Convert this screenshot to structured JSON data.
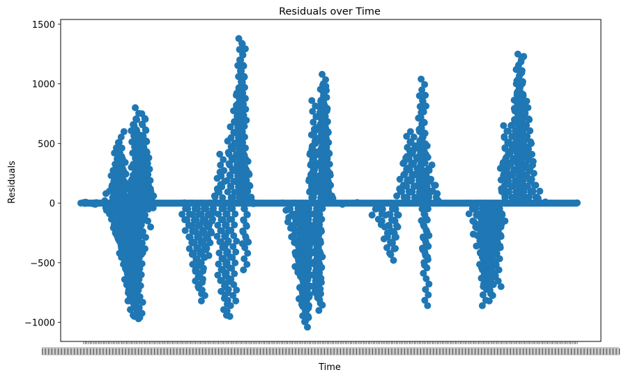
{
  "chart_data": {
    "type": "scatter",
    "title": "Residuals over Time",
    "xlabel": "Time",
    "ylabel": "Residuals",
    "ylim": [
      -1160,
      1540
    ],
    "yticks": [
      1500,
      1000,
      500,
      0,
      -500,
      -1000
    ],
    "ytick_labels": [
      "1500",
      "1000",
      "500",
      "0",
      "−500",
      "−1000"
    ],
    "grid": false,
    "marker_color": "#1f77b4",
    "x_tick_note": "dense overlapping date tick labels, unreadable",
    "series": [
      {
        "values": [
          [
            0.0,
            5
          ],
          [
            0.005,
            -3
          ],
          [
            0.01,
            8
          ],
          [
            0.015,
            -6
          ],
          [
            0.02,
            2
          ],
          [
            0.025,
            -10
          ],
          [
            0.03,
            4
          ],
          [
            0.035,
            -2
          ],
          [
            0.04,
            20
          ],
          [
            0.045,
            -40
          ],
          [
            0.048,
            80
          ],
          [
            0.052,
            -60
          ],
          [
            0.055,
            150
          ],
          [
            0.058,
            -90
          ],
          [
            0.06,
            230
          ],
          [
            0.062,
            -180
          ],
          [
            0.064,
            320
          ],
          [
            0.066,
            -260
          ],
          [
            0.068,
            420
          ],
          [
            0.07,
            -350
          ],
          [
            0.072,
            510
          ],
          [
            0.074,
            -420
          ],
          [
            0.076,
            600
          ],
          [
            0.078,
            -500
          ],
          [
            0.08,
            390
          ],
          [
            0.082,
            -560
          ],
          [
            0.084,
            250
          ],
          [
            0.086,
            -640
          ],
          [
            0.088,
            170
          ],
          [
            0.09,
            -730
          ],
          [
            0.092,
            80
          ],
          [
            0.094,
            -820
          ],
          [
            0.096,
            -940
          ],
          [
            0.098,
            300
          ],
          [
            0.1,
            -880
          ],
          [
            0.102,
            700
          ],
          [
            0.104,
            -950
          ],
          [
            0.106,
            800
          ],
          [
            0.108,
            -960
          ],
          [
            0.11,
            620
          ],
          [
            0.112,
            450
          ],
          [
            0.114,
            -970
          ],
          [
            0.116,
            560
          ],
          [
            0.118,
            260
          ],
          [
            0.12,
            -430
          ],
          [
            0.122,
            750
          ],
          [
            0.124,
            710
          ],
          [
            0.126,
            480
          ],
          [
            0.128,
            160
          ],
          [
            0.13,
            -200
          ],
          [
            0.132,
            380
          ],
          [
            0.134,
            120
          ],
          [
            0.136,
            60
          ],
          [
            0.138,
            -40
          ],
          [
            0.14,
            10
          ],
          [
            0.145,
            -5
          ],
          [
            0.15,
            0
          ],
          [
            0.2,
            3
          ],
          [
            0.205,
            -140
          ],
          [
            0.21,
            -230
          ],
          [
            0.215,
            -330
          ],
          [
            0.22,
            -430
          ],
          [
            0.225,
            -560
          ],
          [
            0.228,
            -620
          ],
          [
            0.232,
            -700
          ],
          [
            0.236,
            -760
          ],
          [
            0.24,
            -820
          ],
          [
            0.244,
            -500
          ],
          [
            0.248,
            -440
          ],
          [
            0.252,
            -380
          ],
          [
            0.256,
            -300
          ],
          [
            0.26,
            -180
          ],
          [
            0.264,
            -80
          ],
          [
            0.268,
            120
          ],
          [
            0.272,
            260
          ],
          [
            0.276,
            -650
          ],
          [
            0.28,
            410
          ],
          [
            0.284,
            -740
          ],
          [
            0.288,
            -940
          ],
          [
            0.292,
            -950
          ],
          [
            0.296,
            520
          ],
          [
            0.3,
            640
          ],
          [
            0.304,
            -820
          ],
          [
            0.308,
            820
          ],
          [
            0.312,
            950
          ],
          [
            0.316,
            1060
          ],
          [
            0.318,
            1200
          ],
          [
            0.32,
            1380
          ],
          [
            0.322,
            1340
          ],
          [
            0.324,
            880
          ],
          [
            0.326,
            -340
          ],
          [
            0.328,
            -560
          ],
          [
            0.33,
            400
          ],
          [
            0.334,
            240
          ],
          [
            0.338,
            100
          ],
          [
            0.342,
            20
          ],
          [
            0.348,
            -5
          ],
          [
            0.36,
            0
          ],
          [
            0.4,
            2
          ],
          [
            0.41,
            -120
          ],
          [
            0.418,
            -210
          ],
          [
            0.424,
            -330
          ],
          [
            0.43,
            -460
          ],
          [
            0.434,
            -580
          ],
          [
            0.438,
            -600
          ],
          [
            0.44,
            -800
          ],
          [
            0.442,
            -850
          ],
          [
            0.444,
            -780
          ],
          [
            0.446,
            -900
          ],
          [
            0.448,
            -990
          ],
          [
            0.45,
            -960
          ],
          [
            0.452,
            -1040
          ],
          [
            0.454,
            -880
          ],
          [
            0.456,
            -600
          ],
          [
            0.458,
            -420
          ],
          [
            0.46,
            250
          ],
          [
            0.462,
            420
          ],
          [
            0.464,
            500
          ],
          [
            0.466,
            620
          ],
          [
            0.468,
            860
          ],
          [
            0.47,
            -790
          ],
          [
            0.472,
            -720
          ],
          [
            0.474,
            -840
          ],
          [
            0.476,
            -760
          ],
          [
            0.478,
            -900
          ],
          [
            0.48,
            760
          ],
          [
            0.482,
            900
          ],
          [
            0.484,
            1000
          ],
          [
            0.486,
            1080
          ],
          [
            0.488,
            980
          ],
          [
            0.49,
            820
          ],
          [
            0.492,
            600
          ],
          [
            0.494,
            420
          ],
          [
            0.496,
            250
          ],
          [
            0.5,
            120
          ],
          [
            0.505,
            40
          ],
          [
            0.51,
            0
          ],
          [
            0.53,
            -10
          ],
          [
            0.55,
            5
          ],
          [
            0.59,
            -100
          ],
          [
            0.6,
            -180
          ],
          [
            0.61,
            -300
          ],
          [
            0.62,
            -420
          ],
          [
            0.625,
            -480
          ],
          [
            0.63,
            -380
          ],
          [
            0.635,
            -250
          ],
          [
            0.64,
            120
          ],
          [
            0.645,
            200
          ],
          [
            0.65,
            380
          ],
          [
            0.655,
            440
          ],
          [
            0.66,
            560
          ],
          [
            0.665,
            600
          ],
          [
            0.67,
            480
          ],
          [
            0.675,
            240
          ],
          [
            0.68,
            380
          ],
          [
            0.682,
            600
          ],
          [
            0.684,
            760
          ],
          [
            0.686,
            900
          ],
          [
            0.688,
            1040
          ],
          [
            0.69,
            -440
          ],
          [
            0.692,
            -520
          ],
          [
            0.694,
            -860
          ],
          [
            0.696,
            480
          ],
          [
            0.7,
            320
          ],
          [
            0.705,
            200
          ],
          [
            0.71,
            150
          ],
          [
            0.715,
            80
          ],
          [
            0.72,
            20
          ],
          [
            0.73,
            0
          ],
          [
            0.77,
            0
          ],
          [
            0.785,
            -90
          ],
          [
            0.79,
            -200
          ],
          [
            0.795,
            -260
          ],
          [
            0.8,
            -360
          ],
          [
            0.805,
            -460
          ],
          [
            0.808,
            -560
          ],
          [
            0.81,
            -630
          ],
          [
            0.812,
            -860
          ],
          [
            0.814,
            -700
          ],
          [
            0.816,
            -560
          ],
          [
            0.818,
            -480
          ],
          [
            0.82,
            -420
          ],
          [
            0.822,
            -760
          ],
          [
            0.824,
            -680
          ],
          [
            0.826,
            -820
          ],
          [
            0.83,
            -500
          ],
          [
            0.834,
            -620
          ],
          [
            0.836,
            -300
          ],
          [
            0.84,
            -700
          ],
          [
            0.842,
            -360
          ],
          [
            0.844,
            -250
          ],
          [
            0.848,
            -150
          ],
          [
            0.85,
            340
          ],
          [
            0.852,
            120
          ],
          [
            0.855,
            650
          ],
          [
            0.858,
            550
          ],
          [
            0.862,
            480
          ],
          [
            0.866,
            650
          ],
          [
            0.87,
            700
          ],
          [
            0.874,
            840
          ],
          [
            0.878,
            1000
          ],
          [
            0.882,
            1120
          ],
          [
            0.884,
            1250
          ],
          [
            0.886,
            1230
          ],
          [
            0.888,
            960
          ],
          [
            0.892,
            900
          ],
          [
            0.896,
            800
          ],
          [
            0.9,
            700
          ],
          [
            0.904,
            500
          ],
          [
            0.908,
            400
          ],
          [
            0.912,
            200
          ],
          [
            0.916,
            150
          ],
          [
            0.92,
            100
          ],
          [
            0.925,
            40
          ],
          [
            0.93,
            10
          ],
          [
            0.95,
            0
          ],
          [
            1.0,
            2
          ]
        ]
      }
    ]
  }
}
